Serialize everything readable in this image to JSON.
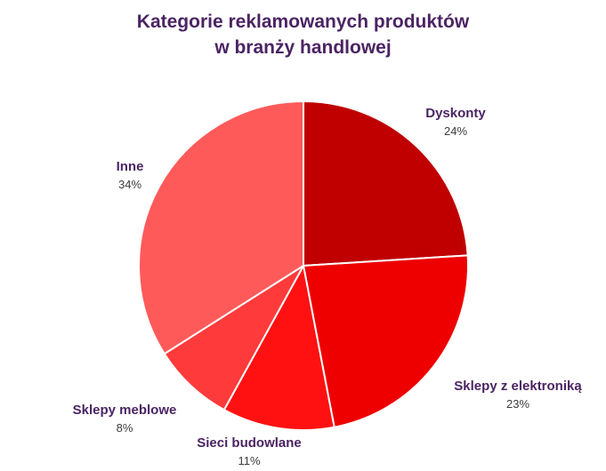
{
  "chart_data": {
    "type": "pie",
    "title": [
      "Kategorie reklamowanych produktów",
      "w branży handlowej"
    ],
    "legend": "none (labels placed next to slices)",
    "slices": [
      {
        "label": "Dyskonty",
        "value": 24,
        "value_label": "24%",
        "color": "#c00000"
      },
      {
        "label": "Sklepy z elektroniką",
        "value": 23,
        "value_label": "23%",
        "color": "#ee0000"
      },
      {
        "label": "Sieci budowlane",
        "value": 11,
        "value_label": "11%",
        "color": "#ff1111"
      },
      {
        "label": "Sklepy meblowe",
        "value": 8,
        "value_label": "8%",
        "color": "#ff3a3a"
      },
      {
        "label": "Inne",
        "value": 34,
        "value_label": "34%",
        "color": "#ff5a5a"
      }
    ]
  }
}
